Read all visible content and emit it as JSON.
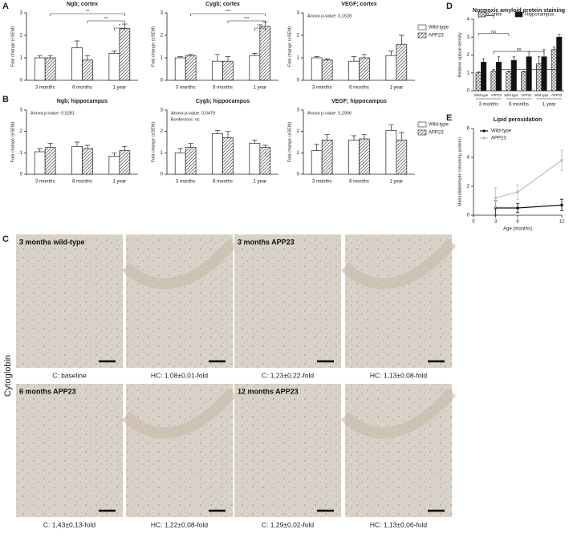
{
  "panel_labels": [
    "A",
    "B",
    "C",
    "D",
    "E"
  ],
  "chart_data": [
    {
      "type": "bar",
      "title": "Ngb; cortex",
      "ylabel": "Fold change (±SEM)",
      "categories": [
        "3 months",
        "6 months",
        "1 year"
      ],
      "series": [
        {
          "name": "Wild-type",
          "color": "#ffffff",
          "values": [
            1.0,
            1.45,
            1.2
          ],
          "errors": [
            0.1,
            0.3,
            0.1
          ]
        },
        {
          "name": "APP23",
          "color": "#ffffff",
          "pattern": "diagonal",
          "values": [
            1.0,
            0.9,
            2.3
          ],
          "errors": [
            0.1,
            0.2,
            0.2
          ]
        }
      ],
      "ylim": [
        0,
        3
      ],
      "yticks": [
        0,
        1,
        2,
        3
      ],
      "significance": [
        "**",
        "**",
        "*"
      ]
    },
    {
      "type": "bar",
      "title": "Cygb; cortex",
      "ylabel": "Fold change (±SEM)",
      "categories": [
        "3 months",
        "6 months",
        "1 year"
      ],
      "series": [
        {
          "name": "Wild-type",
          "color": "#ffffff",
          "values": [
            1.0,
            0.85,
            1.1
          ],
          "errors": [
            0.05,
            0.3,
            0.1
          ]
        },
        {
          "name": "APP23",
          "color": "#ffffff",
          "pattern": "diagonal",
          "values": [
            1.1,
            0.85,
            2.4
          ],
          "errors": [
            0.05,
            0.2,
            0.2
          ]
        }
      ],
      "ylim": [
        0,
        3
      ],
      "yticks": [
        0,
        1,
        2,
        3
      ],
      "significance": [
        "***",
        "***",
        "***"
      ]
    },
    {
      "type": "bar",
      "title": "VEGF; cortex",
      "ylabel": "Fold change (±SEM)",
      "categories": [
        "3 months",
        "6 months",
        "1 year"
      ],
      "series": [
        {
          "name": "Wild-type",
          "color": "#ffffff",
          "values": [
            1.0,
            0.85,
            1.1
          ],
          "errors": [
            0.05,
            0.2,
            0.2
          ]
        },
        {
          "name": "APP23",
          "color": "#ffffff",
          "pattern": "diagonal",
          "values": [
            0.9,
            1.0,
            1.6
          ],
          "errors": [
            0.05,
            0.15,
            0.4
          ]
        }
      ],
      "ylim": [
        0,
        3
      ],
      "yticks": [
        0,
        1,
        2,
        3
      ],
      "annotations": [
        "Anova p-value: 0,1628"
      ],
      "legend": "right"
    },
    {
      "type": "bar",
      "title": "Ngb; hippocampus",
      "ylabel": "Fold change (±SEM)",
      "categories": [
        "3 months",
        "6 months",
        "1 year"
      ],
      "series": [
        {
          "name": "Wild-type",
          "color": "#ffffff",
          "values": [
            1.05,
            1.3,
            0.85
          ],
          "errors": [
            0.15,
            0.2,
            0.15
          ]
        },
        {
          "name": "APP23",
          "color": "#ffffff",
          "pattern": "diagonal",
          "values": [
            1.25,
            1.2,
            1.1
          ],
          "errors": [
            0.2,
            0.15,
            0.2
          ]
        }
      ],
      "ylim": [
        0,
        3
      ],
      "yticks": [
        0,
        1,
        2,
        3
      ],
      "annotations": [
        "Anova p-value: 0,5281"
      ]
    },
    {
      "type": "bar",
      "title": "Cygb; hippocampus",
      "ylabel": "Fold change (±SEM)",
      "categories": [
        "3 months",
        "6 months",
        "1 year"
      ],
      "series": [
        {
          "name": "Wild-type",
          "color": "#ffffff",
          "values": [
            1.0,
            1.9,
            1.45
          ],
          "errors": [
            0.2,
            0.15,
            0.15
          ]
        },
        {
          "name": "APP23",
          "color": "#ffffff",
          "pattern": "diagonal",
          "values": [
            1.25,
            1.7,
            1.25
          ],
          "errors": [
            0.2,
            0.3,
            0.1
          ]
        }
      ],
      "ylim": [
        0,
        3
      ],
      "yticks": [
        0,
        1,
        2,
        3
      ],
      "annotations": [
        "Anova p-value: 0,0479",
        "Bonferonni: ns"
      ]
    },
    {
      "type": "bar",
      "title": "VEGF; hippocampus",
      "ylabel": "Fold change (±SEM)",
      "categories": [
        "3 months",
        "6 months",
        "1 year"
      ],
      "series": [
        {
          "name": "Wild-type",
          "color": "#ffffff",
          "values": [
            1.1,
            1.6,
            2.05
          ],
          "errors": [
            0.3,
            0.2,
            0.25
          ]
        },
        {
          "name": "APP23",
          "color": "#ffffff",
          "pattern": "diagonal",
          "values": [
            1.6,
            1.65,
            1.6
          ],
          "errors": [
            0.25,
            0.2,
            0.35
          ]
        }
      ],
      "ylim": [
        0,
        3
      ],
      "yticks": [
        0,
        1,
        2,
        3
      ],
      "annotations": [
        "Anova p-value: 0,2906"
      ],
      "legend": "right"
    },
    {
      "type": "bar",
      "title": "Normoxic amyloid protein staining",
      "ylabel": "Relative optical density",
      "categories": [
        "Wild-type",
        "APP23",
        "Wild-type",
        "APP23",
        "Wild-type",
        "APP23"
      ],
      "groups": [
        "3 months",
        "6 months",
        "1 year"
      ],
      "series": [
        {
          "name": "Cortex",
          "color": "#ffffff",
          "pattern": "crosshatch",
          "values": [
            1.0,
            1.1,
            1.05,
            1.05,
            1.5,
            2.3
          ],
          "errors": [
            0.05,
            0.1,
            0.05,
            0.05,
            0.4,
            0.15
          ]
        },
        {
          "name": "Hippocampus",
          "color": "#111111",
          "values": [
            1.6,
            1.6,
            1.7,
            1.9,
            1.9,
            3.0
          ],
          "errors": [
            0.2,
            0.3,
            0.2,
            0.3,
            0.4,
            0.15
          ]
        }
      ],
      "ylim": [
        0,
        4
      ],
      "yticks": [
        0,
        1,
        2,
        3,
        4
      ],
      "significance": [
        "ns",
        "ns",
        "ns",
        "*"
      ],
      "legend": "top"
    },
    {
      "type": "line",
      "title": "Lipid peroxidation",
      "xlabel": "Age (months)",
      "ylabel": "Malondialdehyde (nmol/mg protein)",
      "x": [
        3,
        6,
        12
      ],
      "series": [
        {
          "name": "Wild-type",
          "color": "#111111",
          "values": [
            0.5,
            0.5,
            0.7
          ],
          "errors": [
            0.5,
            0.3,
            0.4
          ]
        },
        {
          "name": "APP23",
          "color": "#bdbdbd",
          "values": [
            1.2,
            1.6,
            3.8
          ],
          "errors": [
            0.7,
            0.5,
            0.7
          ]
        }
      ],
      "xlim": [
        0,
        12
      ],
      "xticks": [
        0,
        3,
        6,
        12
      ],
      "ylim": [
        0,
        6
      ],
      "yticks": [
        0,
        2,
        4,
        6
      ],
      "legend": "upper left"
    }
  ],
  "panel_c": {
    "side_label": "Cytoglobin",
    "images": [
      {
        "title": "3 months wild-type",
        "caption": "C: baseline"
      },
      {
        "caption": "HC: 1,08±0,01-fold"
      },
      {
        "title": "3 months APP23",
        "caption": "C: 1,23±0,22-fold"
      },
      {
        "caption": "HC: 1,13±0,08-fold"
      },
      {
        "title": "6 months APP23",
        "caption": "C: 1,43±0,13-fold"
      },
      {
        "caption": "HC: 1,22±0,08-fold"
      },
      {
        "title": "12 months APP23",
        "caption": "C: 1,29±0,02-fold"
      },
      {
        "caption": "HC: 1,13±0,06-fold"
      }
    ]
  }
}
